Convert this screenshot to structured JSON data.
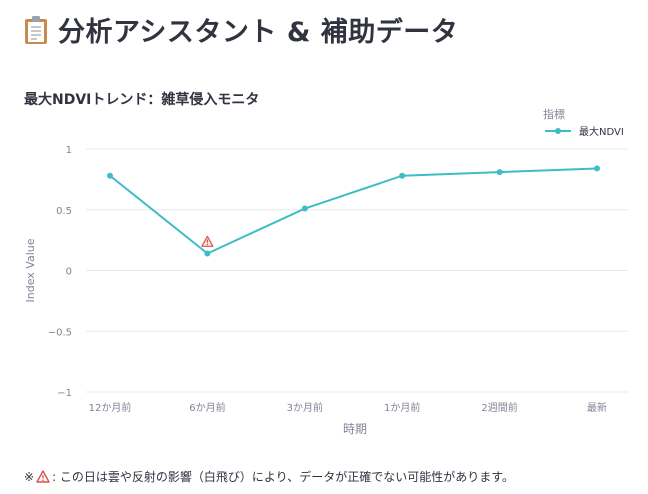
{
  "header": {
    "title": "分析アシスタント & 補助データ",
    "icon": "clipboard-icon"
  },
  "chart_title": "最大NDVIトレンド：雑草侵入モニタ",
  "chart_data": {
    "type": "line",
    "categories": [
      "12か月前",
      "6か月前",
      "3か月前",
      "1か月前",
      "2週間前",
      "最新"
    ],
    "series": [
      {
        "name": "最大NDVI",
        "values": [
          0.78,
          0.14,
          0.51,
          0.78,
          0.81,
          0.84
        ],
        "color": "#3ebdc6"
      }
    ],
    "xlabel": "時期",
    "ylabel": "Index Value",
    "ylim": [
      -1,
      1
    ],
    "yticks": [
      1,
      0.5,
      0,
      -0.5,
      -1
    ],
    "ytick_labels": [
      "1",
      "0.5",
      "0",
      "−0.5",
      "−1"
    ],
    "grid": true,
    "legend": {
      "title": "指標",
      "placement": "top-right"
    },
    "annotations": [
      {
        "category": "6か月前",
        "icon": "warning-icon",
        "color": "#d9534f"
      }
    ]
  },
  "footnote": {
    "prefix": "※",
    "icon": "warning-icon",
    "text": ": この日は雲や反射の影響（白飛び）により、データが正確でない可能性があります。"
  }
}
